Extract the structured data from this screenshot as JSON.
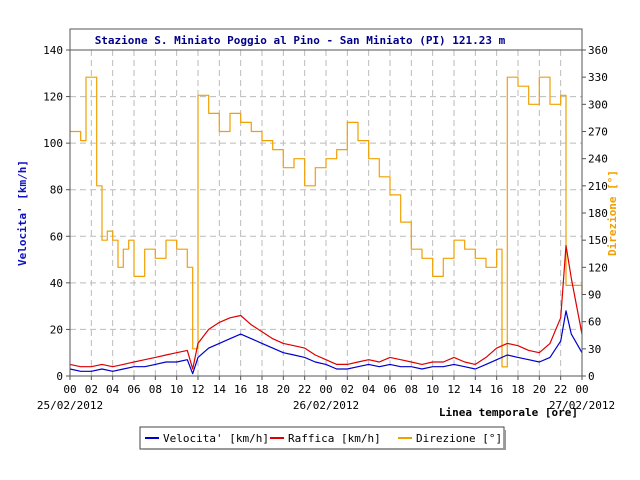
{
  "chart_data": {
    "type": "line",
    "title": "Stazione S. Miniato Poggio al Pino - San Miniato (PI) 121.23 m",
    "ylabel_left": "Velocita' [km/h]",
    "ylabel_right": "Direzione [°]",
    "xlabel": "Linea temporale [ore]",
    "ylim_left": [
      0,
      140
    ],
    "yticks_left": [
      "0",
      "20",
      "40",
      "60",
      "80",
      "100",
      "120",
      "140"
    ],
    "ylim_right": [
      0,
      360
    ],
    "yticks_right": [
      "0",
      "30",
      "60",
      "90",
      "120",
      "150",
      "180",
      "210",
      "240",
      "270",
      "300",
      "330",
      "360"
    ],
    "xlim_hours": [
      0,
      48
    ],
    "xticks": [
      "00",
      "02",
      "04",
      "06",
      "08",
      "10",
      "12",
      "14",
      "16",
      "18",
      "20",
      "22",
      "00",
      "02",
      "04",
      "06",
      "08",
      "10",
      "12",
      "14",
      "16",
      "18",
      "20",
      "22",
      "00"
    ],
    "date_labels": [
      {
        "label": "25/02/2012",
        "hour": 0
      },
      {
        "label": "26/02/2012",
        "hour": 24
      },
      {
        "label": "27/02/2012",
        "hour": 48
      }
    ],
    "grid": true,
    "legend_placement": "bottom",
    "series": [
      {
        "name": "Velocita' [km/h]",
        "color": "#0000cc",
        "axis": "left",
        "x": [
          0,
          1,
          2,
          3,
          4,
          5,
          6,
          7,
          8,
          9,
          10,
          11,
          11.5,
          12,
          13,
          14,
          15,
          16,
          17,
          18,
          19,
          20,
          21,
          22,
          23,
          24,
          25,
          26,
          27,
          28,
          29,
          30,
          31,
          32,
          33,
          34,
          35,
          36,
          37,
          38,
          39,
          40,
          41,
          42,
          43,
          44,
          45,
          46,
          46.5,
          47,
          48
        ],
        "values": [
          3,
          2,
          2,
          3,
          2,
          3,
          4,
          4,
          5,
          6,
          6,
          7,
          1,
          8,
          12,
          14,
          16,
          18,
          16,
          14,
          12,
          10,
          9,
          8,
          6,
          5,
          3,
          3,
          4,
          5,
          4,
          5,
          4,
          4,
          3,
          4,
          4,
          5,
          4,
          3,
          5,
          7,
          9,
          8,
          7,
          6,
          8,
          15,
          28,
          18,
          10
        ]
      },
      {
        "name": "Raffica [km/h]",
        "color": "#dd0000",
        "axis": "left",
        "x": [
          0,
          1,
          2,
          3,
          4,
          5,
          6,
          7,
          8,
          9,
          10,
          11,
          11.5,
          12,
          13,
          14,
          15,
          16,
          17,
          18,
          19,
          20,
          21,
          22,
          23,
          24,
          25,
          26,
          27,
          28,
          29,
          30,
          31,
          32,
          33,
          34,
          35,
          36,
          37,
          38,
          39,
          40,
          41,
          42,
          43,
          44,
          45,
          46,
          46.5,
          47,
          48
        ],
        "values": [
          5,
          4,
          4,
          5,
          4,
          5,
          6,
          7,
          8,
          9,
          10,
          11,
          3,
          14,
          20,
          23,
          25,
          26,
          22,
          19,
          16,
          14,
          13,
          12,
          9,
          7,
          5,
          5,
          6,
          7,
          6,
          8,
          7,
          6,
          5,
          6,
          6,
          8,
          6,
          5,
          8,
          12,
          14,
          13,
          11,
          10,
          14,
          25,
          56,
          42,
          18
        ]
      },
      {
        "name": "Direzione [°]",
        "color": "#f0a000",
        "axis": "right",
        "x": [
          0,
          1,
          1.5,
          2,
          2.5,
          3,
          3.5,
          4,
          4.5,
          5,
          5.5,
          6,
          7,
          8,
          9,
          10,
          11,
          11.5,
          12,
          13,
          14,
          15,
          16,
          17,
          18,
          19,
          20,
          21,
          22,
          23,
          24,
          25,
          26,
          27,
          28,
          29,
          30,
          31,
          32,
          33,
          34,
          35,
          36,
          37,
          38,
          39,
          40,
          40.5,
          41,
          42,
          43,
          44,
          45,
          46,
          46.5,
          47,
          48
        ],
        "values": [
          270,
          260,
          330,
          330,
          210,
          150,
          160,
          150,
          120,
          140,
          150,
          110,
          140,
          130,
          150,
          140,
          120,
          30,
          310,
          290,
          270,
          290,
          280,
          270,
          260,
          250,
          230,
          240,
          210,
          230,
          240,
          250,
          280,
          260,
          240,
          220,
          200,
          170,
          140,
          130,
          110,
          130,
          150,
          140,
          130,
          120,
          140,
          10,
          330,
          320,
          300,
          330,
          300,
          310,
          100,
          100,
          90
        ]
      }
    ]
  }
}
